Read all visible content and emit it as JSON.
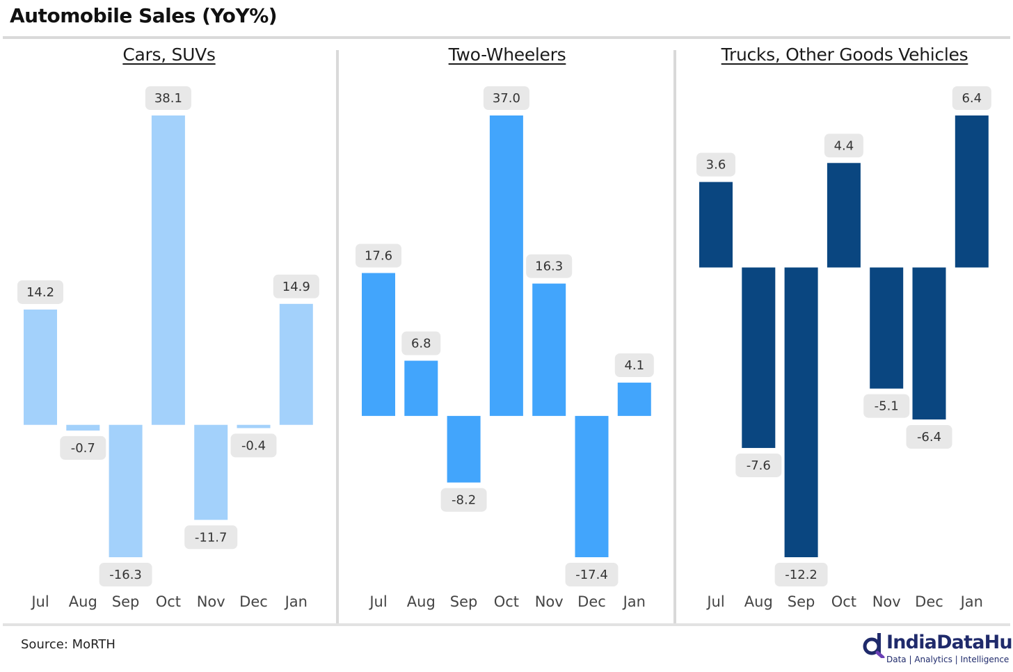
{
  "title": "Automobile Sales (YoY%)",
  "source": "Source: MoRTH",
  "logo": {
    "name": "IndiaDataHub",
    "tagline": "Data | Analytics | Intelligence",
    "icon": "magnifier-logo-icon"
  },
  "chart_data": [
    {
      "type": "bar",
      "title": "Cars, SUVs",
      "categories": [
        "Jul",
        "Aug",
        "Sep",
        "Oct",
        "Nov",
        "Dec",
        "Jan"
      ],
      "values": [
        14.2,
        -0.7,
        -16.3,
        38.1,
        -11.7,
        -0.4,
        14.9
      ],
      "color": "#a3d1fb",
      "xlabel": "",
      "ylabel": "",
      "grid": false,
      "legend": "none"
    },
    {
      "type": "bar",
      "title": "Two-Wheelers",
      "categories": [
        "Jul",
        "Aug",
        "Sep",
        "Oct",
        "Nov",
        "Dec",
        "Jan"
      ],
      "values": [
        17.6,
        6.8,
        -8.2,
        37.0,
        16.3,
        -17.4,
        4.1
      ],
      "color": "#42a5fc",
      "xlabel": "",
      "ylabel": "",
      "grid": false,
      "legend": "none"
    },
    {
      "type": "bar",
      "title": "Trucks, Other Goods Vehicles",
      "categories": [
        "Jul",
        "Aug",
        "Sep",
        "Oct",
        "Nov",
        "Dec",
        "Jan"
      ],
      "values": [
        3.6,
        -7.6,
        -12.2,
        4.4,
        -5.1,
        -6.4,
        6.4
      ],
      "color": "#0a4680",
      "xlabel": "",
      "ylabel": "",
      "grid": false,
      "legend": "none"
    }
  ]
}
